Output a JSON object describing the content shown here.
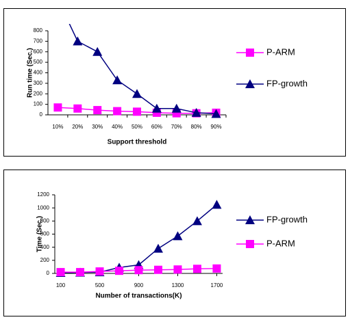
{
  "chart_data": [
    {
      "type": "line",
      "y_label": "Run time (Sec.)",
      "x_label": "Support threshold",
      "categories": [
        "10%",
        "20%",
        "30%",
        "40%",
        "50%",
        "60%",
        "70%",
        "80%",
        "90%"
      ],
      "ylim": [
        0,
        800
      ],
      "yticks": [
        0,
        100,
        200,
        300,
        400,
        500,
        600,
        700,
        800
      ],
      "series": [
        {
          "name": "P-ARM",
          "color": "#ff00ff",
          "marker": "square",
          "values": [
            70,
            60,
            45,
            35,
            30,
            20,
            15,
            15,
            20
          ]
        },
        {
          "name": "FP-growth",
          "color": "#000080",
          "marker": "triangle",
          "values": [
            1100,
            700,
            600,
            330,
            200,
            60,
            60,
            20,
            10
          ]
        }
      ]
    },
    {
      "type": "line",
      "y_label": "Time (Sec.)",
      "x_label": "Number of transactions(K)",
      "x": [
        100,
        300,
        500,
        700,
        900,
        1100,
        1300,
        1500,
        1700
      ],
      "xlim": [
        40,
        1760
      ],
      "xticks": [
        100,
        500,
        900,
        1300,
        1700
      ],
      "ylim": [
        0,
        1200
      ],
      "yticks": [
        0,
        200,
        400,
        600,
        800,
        1000,
        1200
      ],
      "series": [
        {
          "name": "FP-growth",
          "color": "#000080",
          "marker": "triangle",
          "values": [
            10,
            15,
            20,
            90,
            130,
            380,
            570,
            800,
            1050
          ]
        },
        {
          "name": "P-ARM",
          "color": "#ff00ff",
          "marker": "square",
          "values": [
            20,
            20,
            30,
            40,
            50,
            55,
            60,
            70,
            75
          ]
        }
      ]
    }
  ]
}
